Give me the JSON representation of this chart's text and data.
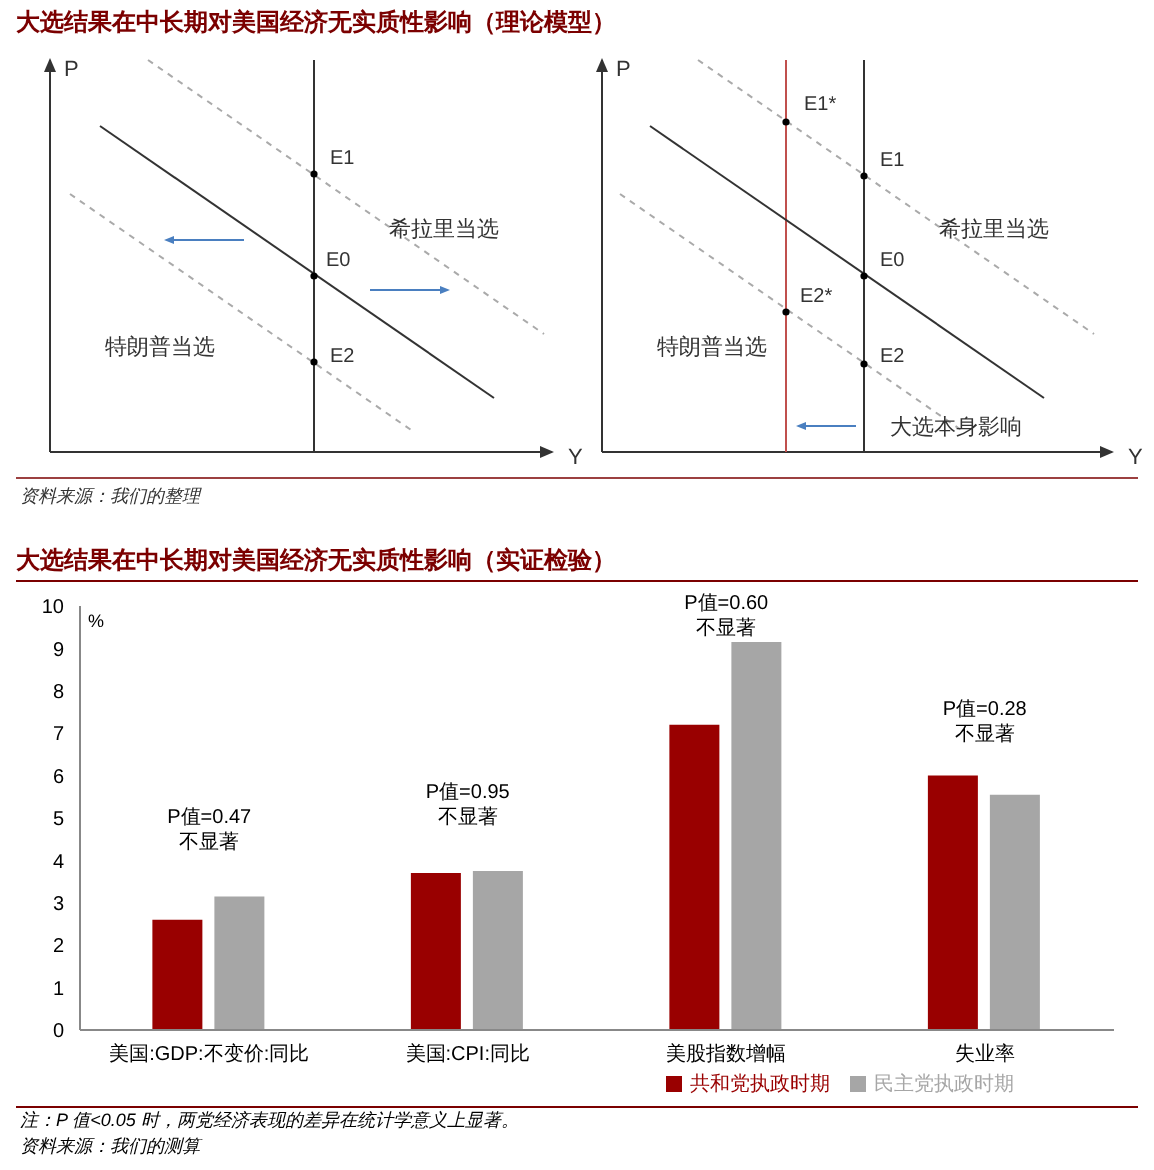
{
  "chart_data": [
    {
      "type": "other",
      "title": "大选结果在中长期对美国经济无实质性影响（理论模型）",
      "xlabel": "Y",
      "ylabel": "P",
      "annotations": [
        "E1",
        "E0",
        "E2",
        "希拉里当选",
        "特朗普当选",
        "资料来源：我们的整理"
      ]
    },
    {
      "type": "other",
      "xlabel": "Y",
      "ylabel": "P",
      "annotations": [
        "E1*",
        "E1",
        "E0",
        "E2*",
        "E2",
        "希拉里当选",
        "特朗普当选",
        "大选本身影响"
      ]
    },
    {
      "type": "bar",
      "title": "大选结果在中长期对美国经济无实质性影响（实证检验）",
      "ylabel": "%",
      "categories": [
        "美国:GDP:不变价:同比",
        "美国:CPI:同比",
        "美股指数增幅",
        "失业率"
      ],
      "series": [
        {
          "name": "共和党执政时期",
          "color": "#990000",
          "values": [
            2.6,
            3.7,
            7.2,
            6.0
          ]
        },
        {
          "name": "民主党执政时期",
          "color": "#a6a6a6",
          "values": [
            3.15,
            3.75,
            9.15,
            5.55
          ]
        }
      ],
      "ylim": [
        0,
        10
      ],
      "yticks": [
        0,
        1,
        2,
        3,
        4,
        5,
        6,
        7,
        8,
        9,
        10
      ],
      "legend": "bottom right",
      "annotations": [
        "P值=0.47",
        "不显著",
        "P值=0.95",
        "不显著",
        "P值=0.60",
        "不显著",
        "P值=0.28",
        "不显著",
        "注：P 值<0.05 时，两党经济表现的差异在统计学意义上显著。",
        "资料来源：我们的测算"
      ]
    }
  ]
}
